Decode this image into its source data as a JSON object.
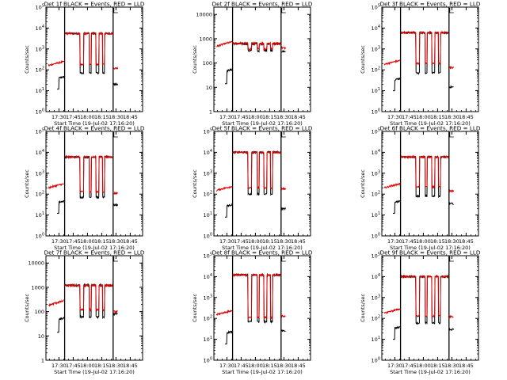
{
  "figure": {
    "background": "#ffffff",
    "colors": {
      "events": "#000000",
      "lld": "#e00000",
      "axes": "#000000"
    },
    "x_ticks": [
      "17:30",
      "17:45",
      "18:00",
      "18:15",
      "18:30",
      "18:45"
    ],
    "x_tick_minutes": [
      30,
      45,
      60,
      75,
      90,
      105
    ],
    "xlim_minutes": [
      16.33,
      118
    ],
    "xlabel": "Start Time (19-Jul-02 17:16:20)",
    "ylabel": "Counts/sec",
    "vlines_minutes": [
      36,
      87
    ]
  },
  "chart_data": [
    {
      "type": "line",
      "title": "Det 1f BLACK = Events, RED = LLD",
      "xlabel": "Start Time (19-Jul-02 17:16:20)",
      "ylabel": "Counts/sec",
      "yscale": "log",
      "ylim": [
        1,
        100000
      ],
      "y_tick_labels": [
        "10^0",
        "10^1",
        "10^2",
        "10^3",
        "10^4",
        "10^5"
      ],
      "lld_levels": {
        "pre": 160,
        "high": 5500,
        "dip": 180,
        "post": 120
      },
      "event_levels": {
        "pre": 30,
        "high": 5500,
        "dip": 70,
        "post": 20
      },
      "series": [
        {
          "name": "Events",
          "color": "#000000"
        },
        {
          "name": "LLD",
          "color": "#e00000"
        }
      ]
    },
    {
      "type": "line",
      "title": "Det 2f BLACK = Events, RED = LLD",
      "xlabel": "Start Time (19-Jul-02 17:16:20)",
      "ylabel": "Counts/sec",
      "yscale": "log",
      "ylim": [
        1,
        20000
      ],
      "y_tick_labels": [
        "1",
        "10",
        "100",
        "1000",
        "10000"
      ],
      "lld_levels": {
        "pre": 480,
        "high": 650,
        "dip": 380,
        "post": 420
      },
      "event_levels": {
        "pre": 35,
        "high": 620,
        "dip": 320,
        "post": 300
      },
      "series": [
        {
          "name": "Events",
          "color": "#000000"
        },
        {
          "name": "LLD",
          "color": "#e00000"
        }
      ]
    },
    {
      "type": "line",
      "title": "Det 3f BLACK = Events, RED = LLD",
      "xlabel": "Start Time (19-Jul-02 17:16:20)",
      "ylabel": "Counts/sec",
      "yscale": "log",
      "ylim": [
        1,
        100000
      ],
      "y_tick_labels": [
        "10^0",
        "10^1",
        "10^2",
        "10^3",
        "10^4",
        "10^5"
      ],
      "lld_levels": {
        "pre": 180,
        "high": 6000,
        "dip": 200,
        "post": 130
      },
      "event_levels": {
        "pre": 25,
        "high": 6000,
        "dip": 70,
        "post": 15
      },
      "series": [
        {
          "name": "Events",
          "color": "#000000"
        },
        {
          "name": "LLD",
          "color": "#e00000"
        }
      ]
    },
    {
      "type": "line",
      "title": "Det 4f BLACK = Events, RED = LLD",
      "xlabel": "Start Time (19-Jul-02 17:16:20)",
      "ylabel": "Counts/sec",
      "yscale": "log",
      "ylim": [
        1,
        100000
      ],
      "y_tick_labels": [
        "10^0",
        "10^1",
        "10^2",
        "10^3",
        "10^4",
        "10^5"
      ],
      "lld_levels": {
        "pre": 200,
        "high": 6000,
        "dip": 130,
        "post": 110
      },
      "event_levels": {
        "pre": 30,
        "high": 6000,
        "dip": 70,
        "post": 30
      },
      "series": [
        {
          "name": "Events",
          "color": "#000000"
        },
        {
          "name": "LLD",
          "color": "#e00000"
        }
      ]
    },
    {
      "type": "line",
      "title": "Det 5f BLACK = Events, RED = LLD",
      "xlabel": "Start Time (19-Jul-02 17:16:20)",
      "ylabel": "Counts/sec",
      "yscale": "log",
      "ylim": [
        1,
        100000
      ],
      "y_tick_labels": [
        "10^0",
        "10^1",
        "10^2",
        "10^3",
        "10^4",
        "10^5"
      ],
      "lld_levels": {
        "pre": 150,
        "high": 10000,
        "dip": 200,
        "post": 180
      },
      "event_levels": {
        "pre": 20,
        "high": 10000,
        "dip": 100,
        "post": 20
      },
      "series": [
        {
          "name": "Events",
          "color": "#000000"
        },
        {
          "name": "LLD",
          "color": "#e00000"
        }
      ]
    },
    {
      "type": "line",
      "title": "Det 6f BLACK = Events, RED = LLD",
      "xlabel": "Start Time (19-Jul-02 17:16:20)",
      "ylabel": "Counts/sec",
      "yscale": "log",
      "ylim": [
        1,
        100000
      ],
      "y_tick_labels": [
        "10^0",
        "10^1",
        "10^2",
        "10^3",
        "10^4",
        "10^5"
      ],
      "lld_levels": {
        "pre": 200,
        "high": 6000,
        "dip": 220,
        "post": 140
      },
      "event_levels": {
        "pre": 30,
        "high": 6000,
        "dip": 80,
        "post": 35
      },
      "series": [
        {
          "name": "Events",
          "color": "#000000"
        },
        {
          "name": "LLD",
          "color": "#e00000"
        }
      ]
    },
    {
      "type": "line",
      "title": "Det 7f BLACK = Events, RED = LLD",
      "xlabel": "Start Time (19-Jul-02 17:16:20)",
      "ylabel": "Counts/sec",
      "yscale": "log",
      "ylim": [
        1,
        20000
      ],
      "y_tick_labels": [
        "1",
        "10",
        "100",
        "1000",
        "10000"
      ],
      "lld_levels": {
        "pre": 180,
        "high": 1200,
        "dip": 120,
        "post": 100
      },
      "event_levels": {
        "pre": 35,
        "high": 1200,
        "dip": 60,
        "post": 80
      },
      "series": [
        {
          "name": "Events",
          "color": "#000000"
        },
        {
          "name": "LLD",
          "color": "#e00000"
        }
      ]
    },
    {
      "type": "line",
      "title": "Det 8f BLACK = Events, RED = LLD",
      "xlabel": "Start Time (19-Jul-02 17:16:20)",
      "ylabel": "Counts/sec",
      "yscale": "log",
      "ylim": [
        1,
        100000
      ],
      "y_tick_labels": [
        "10^0",
        "10^1",
        "10^2",
        "10^3",
        "10^4",
        "10^5"
      ],
      "lld_levels": {
        "pre": 150,
        "high": 12000,
        "dip": 110,
        "post": 130
      },
      "event_levels": {
        "pre": 15,
        "high": 12000,
        "dip": 70,
        "post": 25
      },
      "series": [
        {
          "name": "Events",
          "color": "#000000"
        },
        {
          "name": "LLD",
          "color": "#e00000"
        }
      ]
    },
    {
      "type": "line",
      "title": "Det 9f BLACK = Events, RED = LLD",
      "xlabel": "Start Time (19-Jul-02 17:16:20)",
      "ylabel": "Counts/sec",
      "yscale": "log",
      "ylim": [
        1,
        100000
      ],
      "y_tick_labels": [
        "10^0",
        "10^1",
        "10^2",
        "10^3",
        "10^4",
        "10^5"
      ],
      "lld_levels": {
        "pre": 180,
        "high": 10000,
        "dip": 130,
        "post": 120
      },
      "event_levels": {
        "pre": 25,
        "high": 10000,
        "dip": 60,
        "post": 30
      },
      "series": [
        {
          "name": "Events",
          "color": "#000000"
        },
        {
          "name": "LLD",
          "color": "#e00000"
        }
      ]
    }
  ]
}
